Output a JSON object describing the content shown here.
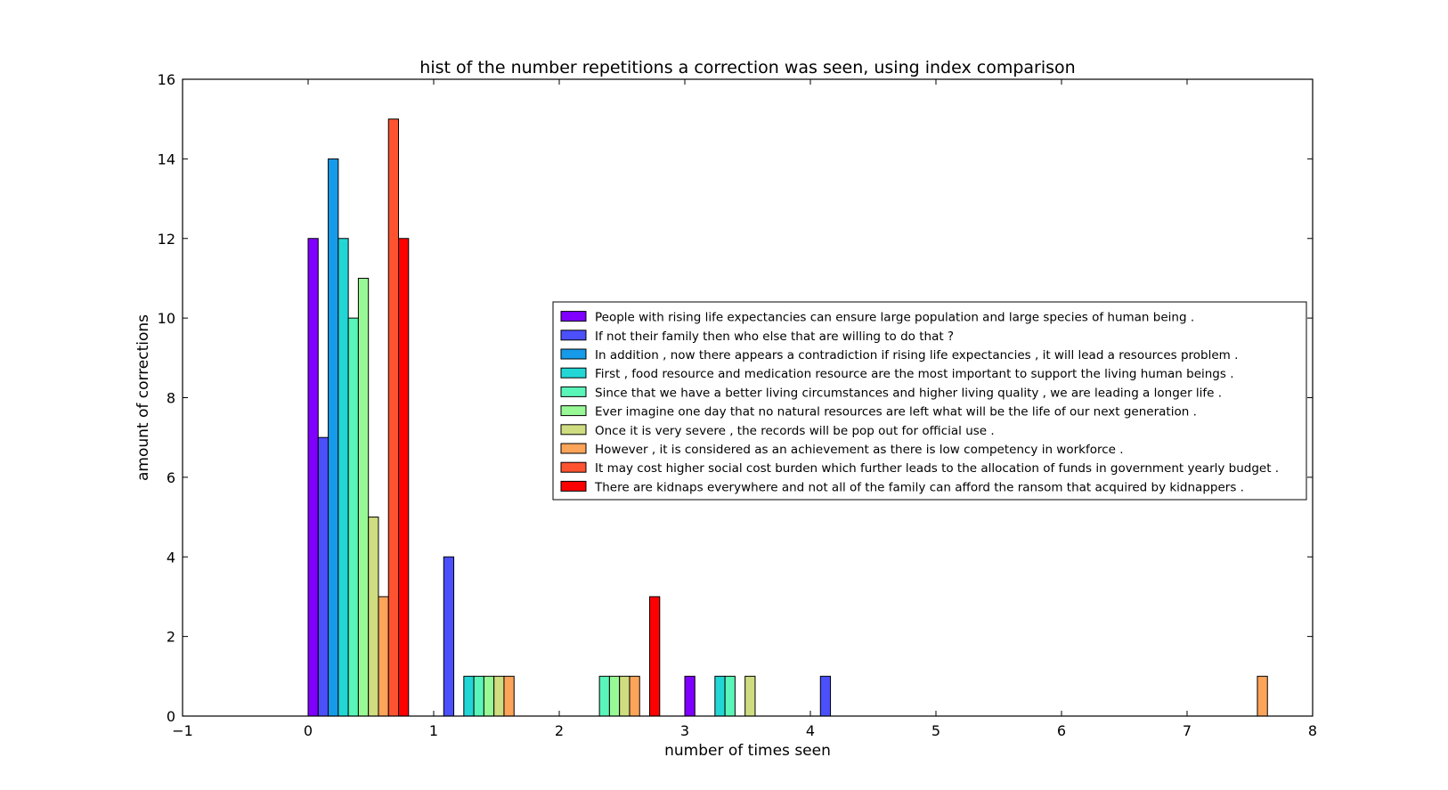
{
  "chart_data": {
    "type": "bar",
    "title": "hist of the number repetitions a correction was seen, using index comparison",
    "xlabel": "number of times seen",
    "ylabel": "amount of corrections",
    "xlim": [
      -1,
      8
    ],
    "ylim": [
      0,
      16
    ],
    "xticks": [
      "−1",
      "0",
      "1",
      "2",
      "3",
      "4",
      "5",
      "6",
      "7",
      "8"
    ],
    "yticks": [
      "0",
      "2",
      "4",
      "6",
      "8",
      "10",
      "12",
      "14",
      "16"
    ],
    "grid": false,
    "legend_position": "center-right",
    "bin_width": 1,
    "bin_starts": [
      0,
      1,
      2,
      3,
      4,
      5,
      6,
      7
    ],
    "series": [
      {
        "name": "People with rising life expectancies can ensure large population and large species of human being .",
        "color": "#7f00ff",
        "values": [
          12,
          0,
          0,
          1,
          0,
          0,
          0,
          0
        ]
      },
      {
        "name": "If not their family then who else that are willing to do that ?",
        "color": "#4b50fb",
        "values": [
          7,
          4,
          0,
          0,
          1,
          0,
          0,
          0
        ]
      },
      {
        "name": "In addition , now there appears a contradiction if rising life expectancies , it will lead a resources problem .",
        "color": "#169bea",
        "values": [
          14,
          0,
          0,
          0,
          0,
          0,
          0,
          0
        ]
      },
      {
        "name": "First , food resource and medication resource are the most important to support the living human beings .",
        "color": "#23d6d6",
        "values": [
          12,
          1,
          0,
          1,
          0,
          0,
          0,
          0
        ]
      },
      {
        "name": "Since that we have a better living circumstances and higher living quality , we are leading a longer life .",
        "color": "#5af5b8",
        "values": [
          10,
          1,
          1,
          1,
          0,
          0,
          0,
          0
        ]
      },
      {
        "name": "Ever imagine one day that no natural resources are left what will be the life of our next generation .",
        "color": "#99f896",
        "values": [
          11,
          1,
          1,
          0,
          0,
          0,
          0,
          0
        ]
      },
      {
        "name": "Once it is very severe , the records will be pop out for official use .",
        "color": "#d0dc80",
        "values": [
          5,
          1,
          1,
          1,
          0,
          0,
          0,
          0
        ]
      },
      {
        "name": "However , it is considered as an achievement as there is low competency in workforce .",
        "color": "#fba45a",
        "values": [
          3,
          1,
          1,
          0,
          0,
          0,
          0,
          1
        ]
      },
      {
        "name": "It may cost higher social cost burden which further leads to the allocation of funds in government yearly budget .",
        "color": "#ff5330",
        "values": [
          15,
          0,
          0,
          0,
          0,
          0,
          0,
          0
        ]
      },
      {
        "name": "There are kidnaps everywhere and not all of the family can afford the ransom that acquired by kidnappers .",
        "color": "#ff0000",
        "values": [
          12,
          0,
          3,
          0,
          0,
          0,
          0,
          0
        ]
      }
    ]
  }
}
